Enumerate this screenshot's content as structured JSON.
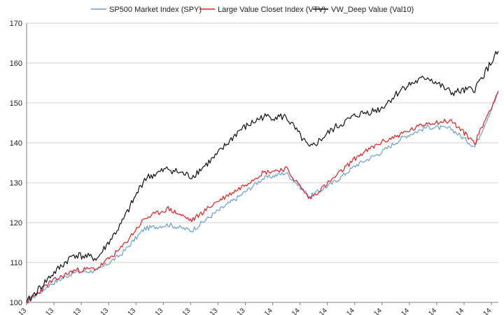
{
  "chart_data": {
    "type": "line",
    "title": "",
    "xlabel": "",
    "ylabel": "",
    "ylim": [
      100,
      170
    ],
    "yticks": [
      100,
      110,
      120,
      130,
      140,
      150,
      160,
      170
    ],
    "x_tick_labels": [
      "13",
      "13",
      "13",
      "13",
      "13",
      "13",
      "13",
      "13",
      "13",
      "14",
      "14",
      "14",
      "14",
      "14",
      "14",
      "14",
      "14",
      "14"
    ],
    "grid": "horizontal",
    "legend_position": "top",
    "x": [
      0,
      5,
      10,
      15,
      20,
      25,
      30,
      35,
      40,
      45,
      50,
      55,
      60,
      65,
      70,
      75,
      80,
      85,
      90,
      95,
      100
    ],
    "series": [
      {
        "name": "SP500 Market Index (SPY)",
        "color": "#6a9fd8",
        "values": [
          100,
          104.5,
          107.5,
          108,
          112,
          118.5,
          119.5,
          118,
          122.5,
          126.5,
          131,
          132.5,
          126.5,
          130,
          134.5,
          137.5,
          141.5,
          144,
          143.5,
          139,
          152.5
        ]
      },
      {
        "name": "Large Value Closet Index (VTV)",
        "color": "#e8201e",
        "values": [
          100,
          105,
          108,
          108.5,
          113.5,
          121,
          123.5,
          120.5,
          125,
          128.5,
          132.5,
          133.5,
          126,
          131,
          136.5,
          140,
          142.5,
          145,
          145.5,
          140,
          153
        ]
      },
      {
        "name": "VW_Deep Value (Val10)",
        "color": "#111111",
        "values": [
          100,
          106.5,
          112,
          111,
          119.5,
          131,
          133.5,
          131.5,
          136.5,
          143,
          146.5,
          146.5,
          138.5,
          143.5,
          147,
          148.5,
          154,
          156.5,
          152.5,
          153.5,
          163
        ]
      }
    ]
  }
}
